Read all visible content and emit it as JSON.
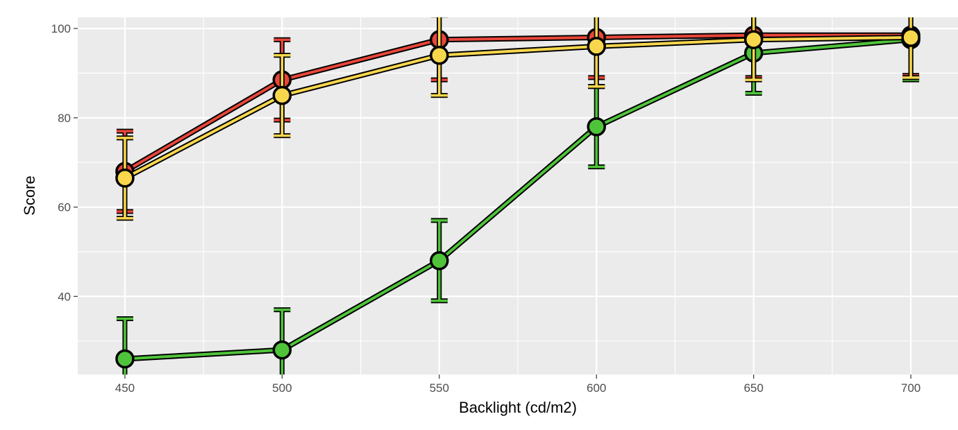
{
  "chart_data": {
    "type": "line",
    "title": "",
    "xlabel": "Backlight (cd/m2)",
    "ylabel": "Score",
    "xlim": [
      435,
      715
    ],
    "ylim": [
      22.5,
      102.5
    ],
    "x_ticks": [
      450,
      500,
      550,
      600,
      650,
      700
    ],
    "x_minor_ticks": [
      475,
      525,
      575,
      625,
      675
    ],
    "y_ticks": [
      40,
      60,
      80,
      100
    ],
    "y_minor_ticks": [
      30,
      50,
      70,
      90
    ],
    "grid": true,
    "legend": "none",
    "background_color": "#ebebeb",
    "grid_color": "#ffffff",
    "series": [
      {
        "color": "#e8463a",
        "x": [
          450,
          500,
          550,
          600,
          650,
          700
        ],
        "y": [
          68,
          88.5,
          97.5,
          98,
          98.5,
          98.5
        ],
        "err_low": [
          59,
          79.5,
          88.5,
          89,
          89,
          89.5
        ],
        "err_high": [
          77,
          97.5,
          106,
          107,
          107,
          107
        ]
      },
      {
        "color": "#4fc43a",
        "x": [
          450,
          500,
          550,
          600,
          650,
          700
        ],
        "y": [
          26,
          28,
          48,
          78,
          94.5,
          97.5
        ],
        "err_low": [
          17,
          19,
          39,
          69,
          85.5,
          88.5
        ],
        "err_high": [
          35,
          37,
          57,
          87,
          103.5,
          106.5
        ]
      },
      {
        "color": "#f9d74d",
        "x": [
          450,
          500,
          550,
          600,
          650,
          700
        ],
        "y": [
          66.5,
          85,
          94,
          96,
          97.5,
          98
        ],
        "err_low": [
          57.5,
          76,
          85,
          87,
          88.5,
          89
        ],
        "err_high": [
          75.5,
          94,
          103,
          105,
          106.5,
          107
        ]
      }
    ]
  }
}
